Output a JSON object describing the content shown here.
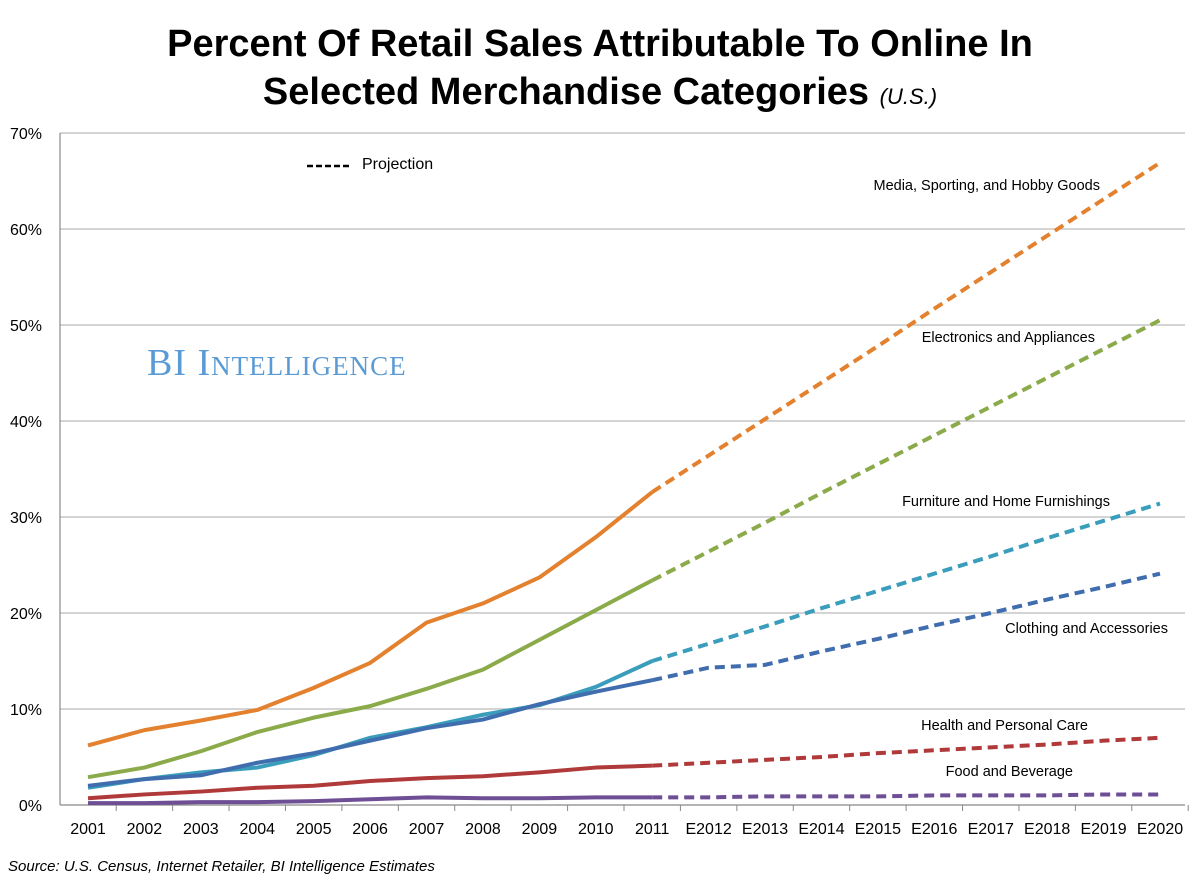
{
  "chart_data": {
    "type": "line",
    "title": "Percent Of Retail Sales Attributable To Online In",
    "title_line2": "Selected Merchandise Categories",
    "subtitle": "(U.S.)",
    "source": "Source: U.S. Census, Internet Retailer, BI Intelligence Estimates",
    "watermark": "BI Intelligence",
    "legend_projection": "Projection",
    "categories": [
      "2001",
      "2002",
      "2003",
      "2004",
      "2005",
      "2006",
      "2007",
      "2008",
      "2009",
      "2010",
      "2011",
      "E2012",
      "E2013",
      "E2014",
      "E2015",
      "E2016",
      "E2017",
      "E2018",
      "E2019",
      "E2020"
    ],
    "projection_start_index": 10,
    "ylim": [
      0,
      70
    ],
    "yticks": [
      "0%",
      "10%",
      "20%",
      "30%",
      "40%",
      "50%",
      "60%",
      "70%"
    ],
    "grid": true,
    "series": [
      {
        "name": "Media, Sporting, and Hobby Goods",
        "color": "#E3812F",
        "values": [
          6.2,
          7.8,
          8.8,
          9.9,
          12.2,
          14.8,
          19.0,
          21.0,
          23.7,
          27.9,
          32.6,
          36.4,
          40.2,
          44.0,
          47.8,
          51.7,
          55.5,
          59.3,
          63.1,
          66.9
        ]
      },
      {
        "name": "Electronics and Appliances",
        "color": "#8BAA4A",
        "values": [
          2.9,
          3.9,
          5.6,
          7.6,
          9.1,
          10.3,
          12.1,
          14.1,
          17.2,
          20.3,
          23.4,
          26.4,
          29.4,
          32.5,
          35.5,
          38.5,
          41.5,
          44.5,
          47.5,
          50.5
        ]
      },
      {
        "name": "Furniture and Home Furnishings",
        "color": "#3A9DBB",
        "values": [
          1.8,
          2.7,
          3.4,
          3.9,
          5.2,
          7.0,
          8.1,
          9.4,
          10.4,
          12.3,
          15.0,
          16.8,
          18.6,
          20.5,
          22.3,
          24.1,
          25.9,
          27.8,
          29.6,
          31.4
        ]
      },
      {
        "name": "Clothing and Accessories",
        "color": "#3F6DAE",
        "values": [
          2.0,
          2.7,
          3.1,
          4.4,
          5.4,
          6.7,
          8.0,
          8.9,
          10.5,
          11.8,
          13.0,
          14.3,
          14.6,
          16.0,
          17.3,
          18.7,
          20.0,
          21.4,
          22.7,
          24.1
        ]
      },
      {
        "name": "Health and Personal Care",
        "color": "#B03A3A",
        "values": [
          0.7,
          1.1,
          1.4,
          1.8,
          2.0,
          2.5,
          2.8,
          3.0,
          3.4,
          3.9,
          4.1,
          4.4,
          4.7,
          5.0,
          5.4,
          5.7,
          6.0,
          6.3,
          6.7,
          7.0
        ]
      },
      {
        "name": "Food and Beverage",
        "color": "#6E4E94",
        "values": [
          0.2,
          0.2,
          0.3,
          0.3,
          0.4,
          0.6,
          0.8,
          0.7,
          0.7,
          0.8,
          0.8,
          0.8,
          0.9,
          0.9,
          0.9,
          1.0,
          1.0,
          1.0,
          1.1,
          1.1
        ]
      }
    ]
  }
}
